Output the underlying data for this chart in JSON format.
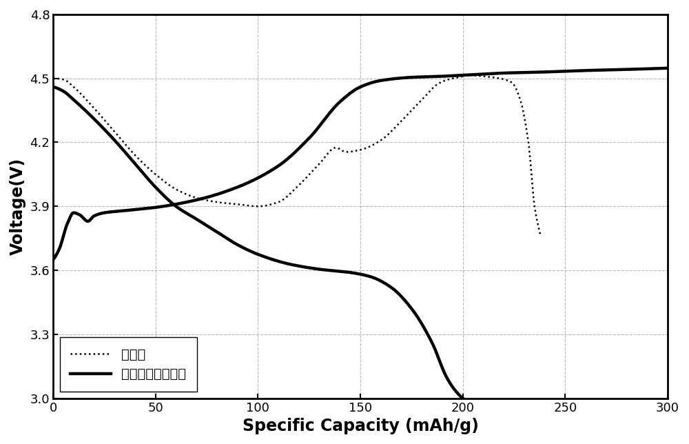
{
  "title": "",
  "xlabel": "Specific Capacity (mAh/g)",
  "ylabel": "Voltage(V)",
  "xlim": [
    0,
    300
  ],
  "ylim": [
    3.0,
    4.8
  ],
  "xticks": [
    0,
    50,
    100,
    150,
    200,
    250,
    300
  ],
  "yticks": [
    3.0,
    3.3,
    3.6,
    3.9,
    4.2,
    4.5,
    4.8
  ],
  "legend1": "魈酸锂",
  "legend2": "富锂三元层状材料",
  "background_color": "#ffffff",
  "line_color": "#000000",
  "grid_color": "#888888"
}
